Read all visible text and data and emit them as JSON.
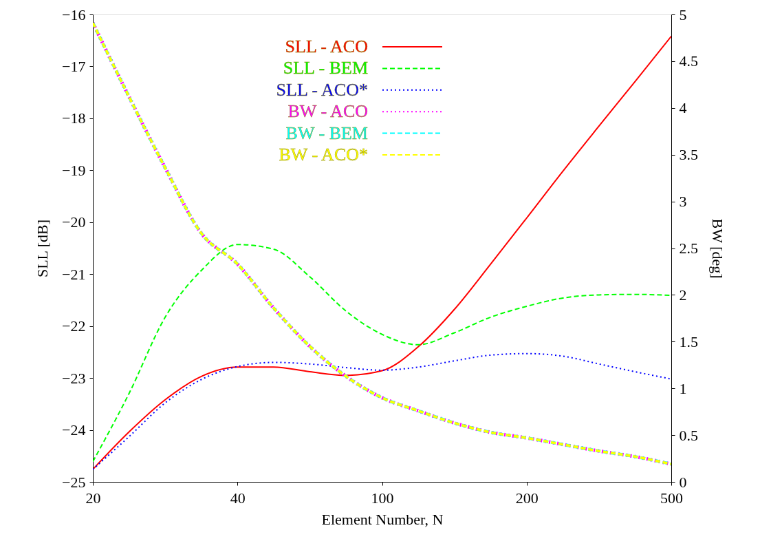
{
  "chart_data": {
    "type": "line",
    "xlabel": "Element Number, N",
    "ylabel": "SLL   [dB]",
    "y2label": "BW   [deg]",
    "categories": [
      "20",
      null,
      null,
      null,
      "40",
      null,
      null,
      null,
      "100",
      null,
      null,
      null,
      "200",
      null,
      null,
      null,
      "500"
    ],
    "ylim": [
      -25,
      -16
    ],
    "yticks": [
      -25,
      -24,
      -23,
      -22,
      -21,
      -20,
      -19,
      -18,
      -17,
      -16
    ],
    "y2lim": [
      0,
      5
    ],
    "y2ticks": [
      0,
      0.5,
      1,
      1.5,
      2,
      2.5,
      3,
      3.5,
      4,
      4.5,
      5
    ],
    "legend": "top",
    "grid": false,
    "series": [
      {
        "name": "SLL - ACO",
        "color": "#ff0000",
        "line_style": "solid",
        "values": [
          -24.76,
          -24.04,
          -23.42,
          -22.97,
          -22.79,
          -22.79,
          -22.88,
          -22.95,
          -22.86,
          -22.4,
          -21.68,
          -20.81,
          -19.92,
          -19.02,
          -18.15,
          -17.29,
          -16.42
        ]
      },
      {
        "name": "SLL - BEM",
        "color": "#00ff00",
        "line_style": "dashed",
        "values": [
          -24.61,
          -23.3,
          -21.83,
          -20.93,
          -20.43,
          -20.52,
          -21.05,
          -21.71,
          -22.16,
          -22.36,
          -22.13,
          -21.83,
          -21.62,
          -21.46,
          -21.4,
          -21.39,
          -21.41
        ]
      },
      {
        "name": "SLL - ACO*",
        "color": "#0000ff",
        "line_style": "dotted",
        "values": [
          -24.76,
          -24.13,
          -23.48,
          -23.03,
          -22.78,
          -22.7,
          -22.73,
          -22.8,
          -22.85,
          -22.79,
          -22.67,
          -22.56,
          -22.53,
          -22.58,
          -22.73,
          -22.88,
          -23.02
        ]
      },
      {
        "name": "BW - ACO",
        "color": "#ff00ff",
        "line_style": "dotted",
        "axis": "y2",
        "values": [
          4.91,
          4.12,
          3.36,
          2.66,
          2.33,
          1.86,
          1.45,
          1.13,
          0.9,
          0.76,
          0.63,
          0.53,
          0.47,
          0.4,
          0.33,
          0.27,
          0.19
        ]
      },
      {
        "name": "BW - BEM",
        "color": "#00ffff",
        "line_style": "dashed",
        "axis": "y2",
        "values": [
          4.91,
          4.12,
          3.36,
          2.66,
          2.33,
          1.86,
          1.45,
          1.13,
          0.9,
          0.76,
          0.63,
          0.53,
          0.47,
          0.4,
          0.33,
          0.27,
          0.19
        ]
      },
      {
        "name": "BW - ACO*",
        "color": "#ffff00",
        "line_style": "dashed",
        "axis": "y2",
        "values": [
          4.91,
          4.12,
          3.36,
          2.66,
          2.33,
          1.86,
          1.45,
          1.13,
          0.9,
          0.76,
          0.63,
          0.53,
          0.47,
          0.4,
          0.33,
          0.27,
          0.19
        ]
      }
    ]
  }
}
